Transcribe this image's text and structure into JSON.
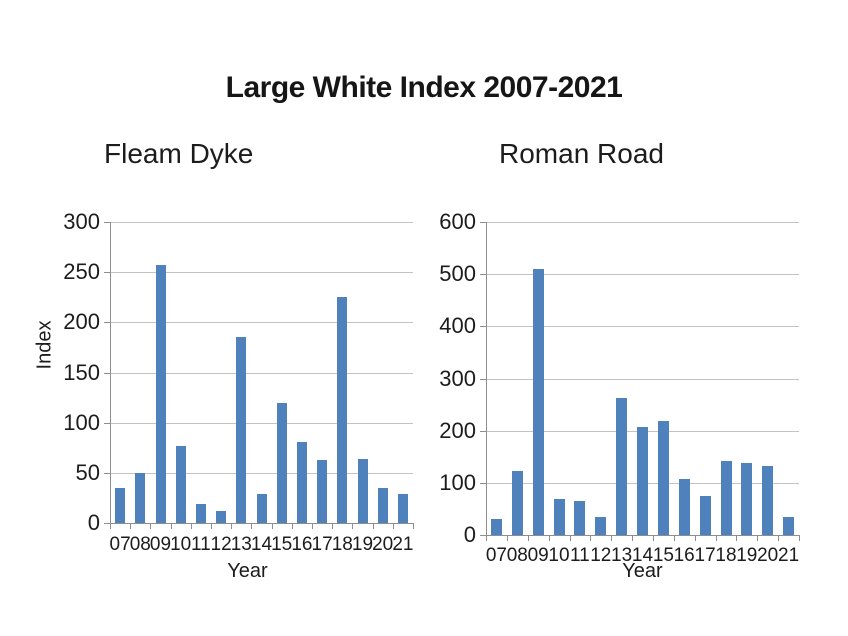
{
  "title": "Large White Index 2007-2021",
  "chart_data": [
    {
      "type": "bar",
      "title": "Fleam Dyke",
      "xlabel": "Year",
      "ylabel": "Index",
      "categories": [
        "07",
        "08",
        "09",
        "10",
        "11",
        "12",
        "13",
        "14",
        "15",
        "16",
        "17",
        "18",
        "19",
        "20",
        "21"
      ],
      "values": [
        35,
        50,
        257,
        77,
        19,
        12,
        185,
        29,
        120,
        81,
        63,
        225,
        64,
        35,
        29
      ],
      "ylim": [
        0,
        300
      ],
      "ytick_step": 50,
      "grid": true,
      "legend": false
    },
    {
      "type": "bar",
      "title": "Roman Road",
      "xlabel": "Year",
      "ylabel": "",
      "categories": [
        "07",
        "08",
        "09",
        "10",
        "11",
        "12",
        "13",
        "14",
        "15",
        "16",
        "17",
        "18",
        "19",
        "20",
        "21"
      ],
      "values": [
        30,
        122,
        510,
        70,
        65,
        34,
        263,
        207,
        219,
        108,
        74,
        142,
        138,
        132,
        34
      ],
      "ylim": [
        0,
        600
      ],
      "ytick_step": 100,
      "grid": true,
      "legend": false
    }
  ],
  "colors": {
    "bar": "#4F81BD",
    "gridline": "#C3C3C3",
    "axis": "#8E8E8E",
    "text": "#1C1C1C"
  }
}
